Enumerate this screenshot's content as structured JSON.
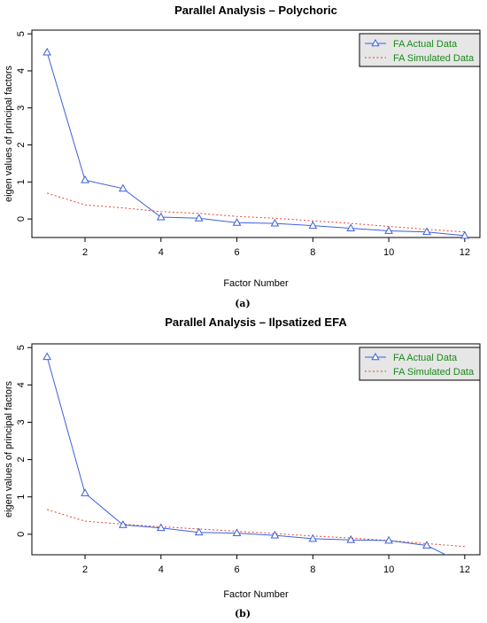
{
  "chart_data": [
    {
      "type": "line",
      "title": "Parallel Analysis – Polychoric",
      "xlabel": "Factor Number",
      "ylabel": "eigen values of principal factors",
      "xlim": [
        0.6,
        12.4
      ],
      "ylim": [
        -0.5,
        5.1
      ],
      "xticks": [
        2,
        4,
        6,
        8,
        10,
        12
      ],
      "yticks": [
        0,
        1,
        2,
        3,
        4,
        5
      ],
      "legend_position": "top-right",
      "caption": "(a)",
      "colors": {
        "actual": "#3b5fe0",
        "simulated": "#e8432e"
      },
      "series": [
        {
          "name": "FA  Actual Data",
          "style": "solid-triangle",
          "x": [
            1,
            2,
            3,
            4,
            5,
            6,
            7,
            8,
            9,
            10,
            11,
            12
          ],
          "values": [
            4.5,
            1.05,
            0.82,
            0.05,
            0.02,
            -0.1,
            -0.12,
            -0.18,
            -0.25,
            -0.32,
            -0.35,
            -0.45
          ]
        },
        {
          "name": "FA  Simulated Data",
          "style": "dotted",
          "x": [
            1,
            2,
            3,
            4,
            5,
            6,
            7,
            8,
            9,
            10,
            11,
            12
          ],
          "values": [
            0.7,
            0.38,
            0.3,
            0.2,
            0.15,
            0.07,
            0.02,
            -0.05,
            -0.12,
            -0.2,
            -0.28,
            -0.35
          ]
        }
      ]
    },
    {
      "type": "line",
      "title": "Parallel Analysis – Ilpsatized EFA",
      "xlabel": "Factor Number",
      "ylabel": "eigen values of principal factors",
      "xlim": [
        0.6,
        12.4
      ],
      "ylim": [
        -0.55,
        5.1
      ],
      "xticks": [
        2,
        4,
        6,
        8,
        10,
        12
      ],
      "yticks": [
        0,
        1,
        2,
        3,
        4,
        5
      ],
      "legend_position": "top-right",
      "caption": "(b)",
      "colors": {
        "actual": "#3b5fe0",
        "simulated": "#e8432e"
      },
      "series": [
        {
          "name": "FA  Actual Data",
          "style": "solid-triangle",
          "x": [
            1,
            2,
            3,
            4,
            5,
            6,
            7,
            8,
            9,
            10,
            11,
            12
          ],
          "values": [
            4.75,
            1.1,
            0.25,
            0.17,
            0.05,
            0.03,
            -0.03,
            -0.12,
            -0.15,
            -0.17,
            -0.3,
            -0.8
          ]
        },
        {
          "name": "FA  Simulated Data",
          "style": "dotted",
          "x": [
            1,
            2,
            3,
            4,
            5,
            6,
            7,
            8,
            9,
            10,
            11,
            12
          ],
          "values": [
            0.66,
            0.35,
            0.27,
            0.2,
            0.14,
            0.08,
            0.02,
            -0.05,
            -0.1,
            -0.17,
            -0.25,
            -0.33
          ]
        }
      ]
    }
  ]
}
